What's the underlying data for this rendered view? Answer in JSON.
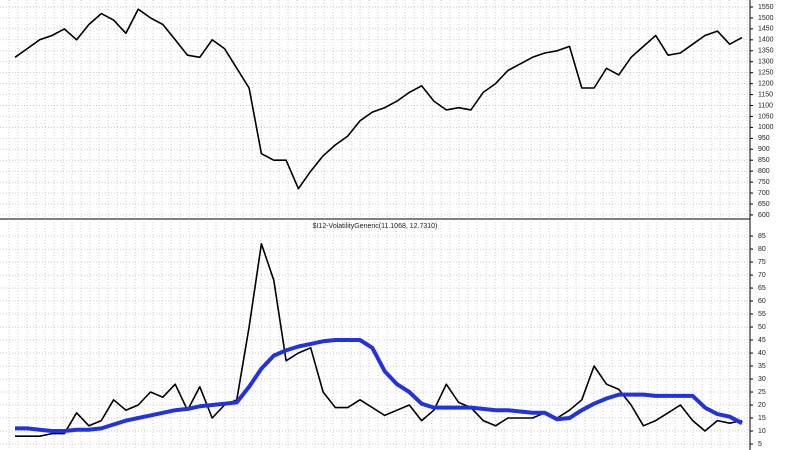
{
  "chart_data": [
    {
      "type": "line",
      "ylim": [
        586,
        1582
      ],
      "yticks": [
        600,
        650,
        700,
        750,
        800,
        850,
        900,
        950,
        1000,
        1050,
        1100,
        1150,
        1200,
        1250,
        1300,
        1350,
        1400,
        1450,
        1500,
        1550
      ],
      "grid": true,
      "series": [
        {
          "color": "#000000",
          "values": [
            1320,
            1360,
            1400,
            1420,
            1450,
            1400,
            1470,
            1520,
            1490,
            1430,
            1540,
            1500,
            1470,
            1400,
            1330,
            1320,
            1400,
            1360,
            1270,
            1180,
            880,
            850,
            850,
            720,
            800,
            870,
            920,
            960,
            1030,
            1070,
            1090,
            1120,
            1160,
            1190,
            1120,
            1080,
            1090,
            1080,
            1160,
            1200,
            1260,
            1290,
            1320,
            1340,
            1350,
            1370,
            1180,
            1180,
            1270,
            1240,
            1320,
            1370,
            1420,
            1330,
            1340,
            1380,
            1420,
            1440,
            1380,
            1410
          ]
        }
      ]
    },
    {
      "type": "line",
      "title": "$I12-VolatilityGeneric(11.1068, 12.7310)",
      "ylim": [
        2.7,
        90.4
      ],
      "yticks": [
        5,
        10,
        15,
        20,
        25,
        30,
        35,
        40,
        45,
        50,
        55,
        60,
        65,
        70,
        75,
        80,
        85
      ],
      "grid": true,
      "series": [
        {
          "color": "#000000",
          "values": [
            8,
            8,
            8,
            9,
            9,
            17,
            12,
            14,
            22,
            18,
            20,
            25,
            23,
            28,
            18,
            27,
            15,
            20,
            22,
            50,
            82,
            68,
            37,
            40,
            42,
            25,
            19,
            19,
            22,
            19,
            16,
            18,
            20,
            14,
            18,
            28,
            21,
            19,
            14,
            12,
            15,
            15,
            15,
            17,
            15,
            18,
            22,
            35,
            28,
            26,
            20,
            12,
            14,
            17,
            20,
            14,
            10,
            14,
            13,
            14
          ]
        },
        {
          "color": "#2233dd",
          "values": [
            11,
            11,
            10.5,
            10,
            10,
            10.5,
            10.5,
            11,
            12.5,
            14,
            15,
            16,
            17,
            18,
            18.5,
            19.5,
            20,
            20.5,
            21,
            27,
            34,
            39,
            41,
            42.5,
            43.5,
            44.5,
            45,
            45,
            45,
            42,
            33,
            28,
            25,
            20.5,
            19,
            19,
            19,
            19,
            18.5,
            18,
            18,
            17.5,
            17,
            17,
            14.5,
            15,
            18,
            20.5,
            22.5,
            24,
            24,
            24,
            23.5,
            23.5,
            23.5,
            23.5,
            19,
            16.5,
            15.5,
            13
          ]
        }
      ]
    }
  ]
}
